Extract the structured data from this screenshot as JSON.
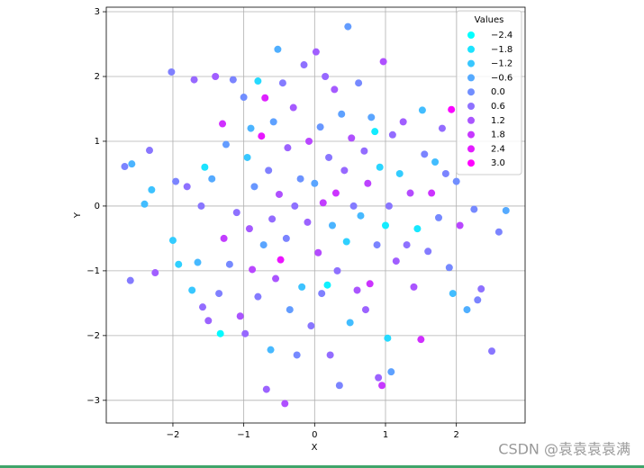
{
  "chart_data": {
    "type": "scatter",
    "xlabel": "X",
    "ylabel": "Y",
    "grid": true,
    "legend_loc": "upper right",
    "xlim": [
      -2.94,
      2.97
    ],
    "ylim": [
      -3.35,
      3.07
    ],
    "xticks": [
      {
        "value": -2,
        "label": "−2"
      },
      {
        "value": -1,
        "label": "−1"
      },
      0,
      1,
      2
    ],
    "yticks": [
      {
        "value": -3,
        "label": "−3"
      },
      {
        "value": -2,
        "label": "−2"
      },
      {
        "value": -1,
        "label": "−1"
      },
      0,
      1,
      2,
      3
    ],
    "legend": {
      "title": "Values",
      "entries": [
        {
          "value": -2.4,
          "label": "−2.4",
          "color": "#00ffff"
        },
        {
          "value": -1.8,
          "label": "−1.8",
          "color": "#1ce3ff"
        },
        {
          "value": -1.2,
          "label": "−1.2",
          "color": "#38c7ff"
        },
        {
          "value": -0.6,
          "label": "−0.6",
          "color": "#55aaff"
        },
        {
          "value": 0.0,
          "label": "0.0",
          "color": "#718eff"
        },
        {
          "value": 0.6,
          "label": "0.6",
          "color": "#8e71ff"
        },
        {
          "value": 1.2,
          "label": "1.2",
          "color": "#aa55ff"
        },
        {
          "value": 1.8,
          "label": "1.8",
          "color": "#c738ff"
        },
        {
          "value": 2.4,
          "label": "2.4",
          "color": "#e31cff"
        },
        {
          "value": 3.0,
          "label": "3.0",
          "color": "#ff00ff"
        }
      ]
    },
    "series": [
      {
        "x": [
          -2.68,
          -2.58,
          -2.6,
          -2.4,
          -2.33,
          -2.3,
          -2.25,
          -2.02,
          -2.0,
          -1.96,
          -1.92,
          -1.8,
          -1.73,
          -1.7,
          -1.65,
          -1.6,
          -1.58,
          -1.55,
          -1.5,
          -1.45,
          -1.4,
          -1.35,
          -1.33,
          -1.3,
          -1.28,
          -1.25,
          -1.2,
          -1.15,
          -1.1,
          -1.05,
          -1.0,
          -0.98,
          -0.95,
          -0.92,
          -0.9,
          -0.88,
          -0.85,
          -0.8,
          -0.8,
          -0.75,
          -0.72,
          -0.7,
          -0.68,
          -0.65,
          -0.62,
          -0.6,
          -0.58,
          -0.55,
          -0.52,
          -0.5,
          -0.48,
          -0.45,
          -0.42,
          -0.4,
          -0.38,
          -0.35,
          -0.3,
          -0.28,
          -0.25,
          -0.2,
          -0.18,
          -0.15,
          -0.1,
          -0.08,
          -0.05,
          0.0,
          0.02,
          0.05,
          0.08,
          0.1,
          0.12,
          0.15,
          0.18,
          0.2,
          0.22,
          0.25,
          0.28,
          0.3,
          0.32,
          0.35,
          0.38,
          0.42,
          0.45,
          0.47,
          0.5,
          0.52,
          0.55,
          0.6,
          0.62,
          0.65,
          0.7,
          0.72,
          0.75,
          0.78,
          0.8,
          0.85,
          0.88,
          0.9,
          0.92,
          0.95,
          0.97,
          1.0,
          1.03,
          1.05,
          1.08,
          1.1,
          1.15,
          1.2,
          1.25,
          1.3,
          1.35,
          1.4,
          1.45,
          1.5,
          1.52,
          1.55,
          1.6,
          1.65,
          1.7,
          1.75,
          1.8,
          1.85,
          1.9,
          1.93,
          1.95,
          2.0,
          2.05,
          2.15,
          2.25,
          2.3,
          2.35,
          2.5,
          2.6,
          2.7
        ],
        "y": [
          0.61,
          0.65,
          -1.15,
          0.03,
          0.86,
          0.25,
          -1.03,
          2.07,
          -0.53,
          0.38,
          -0.9,
          0.3,
          -1.3,
          1.95,
          -0.87,
          0.0,
          -1.56,
          0.6,
          -1.77,
          0.42,
          2.0,
          -1.35,
          -1.97,
          1.27,
          -0.5,
          0.95,
          -0.9,
          1.95,
          -0.1,
          -1.7,
          1.68,
          -1.97,
          0.75,
          -0.35,
          1.2,
          -0.98,
          0.3,
          1.93,
          -1.4,
          1.08,
          -0.6,
          1.67,
          -2.83,
          0.55,
          -2.22,
          -0.2,
          1.3,
          -1.12,
          2.42,
          0.18,
          -0.83,
          1.9,
          -3.05,
          -0.5,
          0.9,
          -1.6,
          1.52,
          0.0,
          -2.3,
          0.42,
          -1.25,
          2.18,
          -0.25,
          1.0,
          -1.85,
          0.35,
          2.38,
          -0.72,
          1.22,
          -1.35,
          0.05,
          2.0,
          -1.22,
          0.75,
          -2.3,
          -0.3,
          1.8,
          0.2,
          -1.0,
          -2.77,
          1.42,
          0.55,
          -0.55,
          2.77,
          -1.8,
          1.05,
          0.0,
          -1.3,
          1.9,
          -0.15,
          0.85,
          -1.6,
          0.35,
          -1.2,
          1.37,
          1.15,
          -0.6,
          -2.65,
          0.6,
          -2.77,
          2.23,
          -0.3,
          -2.04,
          0.0,
          -2.56,
          1.1,
          -0.85,
          0.5,
          1.3,
          -0.6,
          0.2,
          -1.25,
          -0.35,
          -2.06,
          1.48,
          0.8,
          -0.7,
          0.2,
          0.68,
          -0.18,
          1.2,
          0.5,
          -0.95,
          1.49,
          -1.35,
          0.38,
          -0.3,
          -1.6,
          -0.05,
          -1.45,
          -1.28,
          -2.24,
          -0.4,
          -0.07
        ],
        "c": [
          0.2,
          -0.8,
          0.4,
          -1.0,
          0.5,
          -1.1,
          1.0,
          0.3,
          -1.3,
          0.2,
          -1.4,
          0.6,
          -1.2,
          0.8,
          -0.9,
          0.5,
          0.7,
          -1.8,
          0.9,
          -0.6,
          1.0,
          0.3,
          -2.3,
          2.0,
          1.7,
          -0.3,
          0.1,
          0.2,
          0.6,
          1.2,
          0.0,
          0.8,
          -1.2,
          1.1,
          -0.8,
          1.5,
          -0.2,
          -1.6,
          0.4,
          2.5,
          -0.5,
          2.3,
          0.9,
          0.3,
          -0.9,
          0.7,
          -0.4,
          1.2,
          -0.7,
          1.3,
          2.6,
          0.4,
          1.3,
          0.2,
          0.9,
          -0.3,
          1.1,
          0.6,
          0.1,
          -0.1,
          -1.1,
          0.6,
          0.9,
          1.5,
          0.5,
          -0.5,
          1.0,
          1.4,
          -0.2,
          0.3,
          1.7,
          0.8,
          -2.1,
          0.5,
          0.7,
          -0.8,
          1.1,
          1.9,
          0.6,
          0.2,
          -0.4,
          0.8,
          -1.4,
          -0.3,
          -1.0,
          1.3,
          0.4,
          1.2,
          0.1,
          -0.9,
          0.7,
          0.9,
          1.6,
          1.9,
          -0.5,
          -2.0,
          0.2,
          0.9,
          -1.5,
          1.8,
          1.3,
          -2.0,
          -1.6,
          0.5,
          -0.4,
          0.7,
          1.0,
          -1.3,
          1.0,
          0.6,
          1.4,
          1.2,
          -1.9,
          2.0,
          -1.0,
          0.2,
          0.4,
          1.9,
          -1.0,
          0.1,
          0.7,
          0.2,
          0.1,
          2.9,
          -1.0,
          0.0,
          1.5,
          -0.7,
          0.1,
          0.2,
          0.6,
          0.5,
          0.2,
          -0.6
        ]
      }
    ]
  },
  "watermark": "CSDN @袁袁袁袁满"
}
